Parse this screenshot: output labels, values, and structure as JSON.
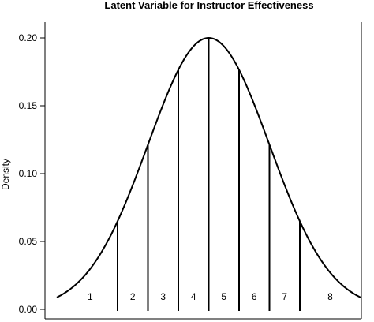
{
  "chart_data": {
    "type": "line",
    "title": "Latent Variable for Instructor Effectiveness",
    "xlabel": "",
    "ylabel": "Density",
    "ylim": [
      0,
      0.2
    ],
    "xlim": [
      -5,
      5
    ],
    "grid": false,
    "legend": "none",
    "y_ticks": [
      "0.00",
      "0.05",
      "0.10",
      "0.15",
      "0.20"
    ],
    "curve": {
      "distribution": "normal",
      "mean": 0,
      "sd": 2,
      "peak_density": 0.2,
      "x_range": [
        -5,
        5
      ]
    },
    "cutpoints": [
      -3,
      -2,
      -1,
      0,
      1,
      2,
      3
    ],
    "categories": [
      "1",
      "2",
      "3",
      "4",
      "5",
      "6",
      "7",
      "8"
    ]
  },
  "colors": {
    "line": "#000000",
    "background": "#ffffff"
  }
}
